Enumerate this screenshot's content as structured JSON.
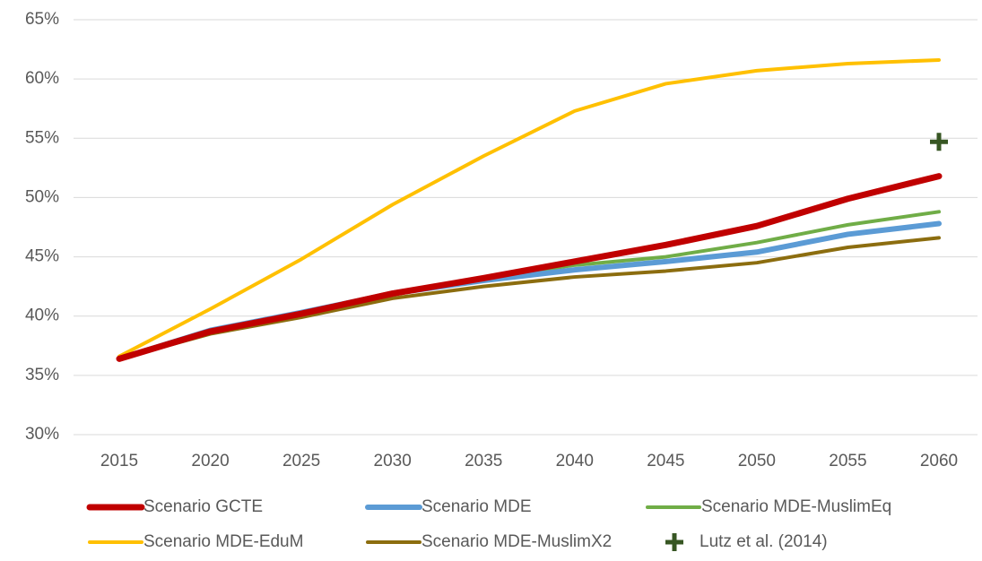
{
  "chart_data": {
    "type": "line",
    "categories": [
      "2015",
      "2020",
      "2025",
      "2030",
      "2035",
      "2040",
      "2045",
      "2050",
      "2055",
      "2060"
    ],
    "series": [
      {
        "name": "Scenario GCTE",
        "color": "#c00000",
        "width": 7,
        "values": [
          36.4,
          38.7,
          40.2,
          41.9,
          43.2,
          44.6,
          46.0,
          47.6,
          49.9,
          51.8
        ]
      },
      {
        "name": "Scenario MDE",
        "color": "#5b9bd5",
        "width": 6,
        "values": [
          36.4,
          38.8,
          40.3,
          41.9,
          43.0,
          43.9,
          44.6,
          45.4,
          46.9,
          47.8
        ]
      },
      {
        "name": "Scenario MDE-MuslimEq",
        "color": "#70ad47",
        "width": 4,
        "values": [
          36.4,
          38.7,
          40.3,
          42.0,
          43.2,
          44.3,
          45.0,
          46.2,
          47.7,
          48.8
        ]
      },
      {
        "name": "Scenario MDE-EduM",
        "color": "#ffc000",
        "width": 4,
        "values": [
          36.6,
          40.6,
          44.8,
          49.4,
          53.5,
          57.3,
          59.6,
          60.7,
          61.3,
          61.6
        ]
      },
      {
        "name": "Scenario MDE-MuslimX2",
        "color": "#8c6d0f",
        "width": 4,
        "values": [
          36.4,
          38.5,
          39.9,
          41.5,
          42.5,
          43.3,
          43.8,
          44.5,
          45.8,
          46.6
        ]
      },
      {
        "name": "Lutz et al. (2014)",
        "color": "#375623",
        "marker": "plus",
        "values": [
          null,
          null,
          null,
          null,
          null,
          null,
          null,
          null,
          null,
          54.7
        ]
      }
    ],
    "ylim": [
      30,
      65
    ],
    "yticks": [
      {
        "value": 30,
        "label": "30%"
      },
      {
        "value": 35,
        "label": "35%"
      },
      {
        "value": 40,
        "label": "40%"
      },
      {
        "value": 45,
        "label": "45%"
      },
      {
        "value": 50,
        "label": "50%"
      },
      {
        "value": 55,
        "label": "55%"
      },
      {
        "value": 60,
        "label": "60%"
      },
      {
        "value": 65,
        "label": "65%"
      }
    ],
    "grid": true,
    "legend": "bottom"
  }
}
